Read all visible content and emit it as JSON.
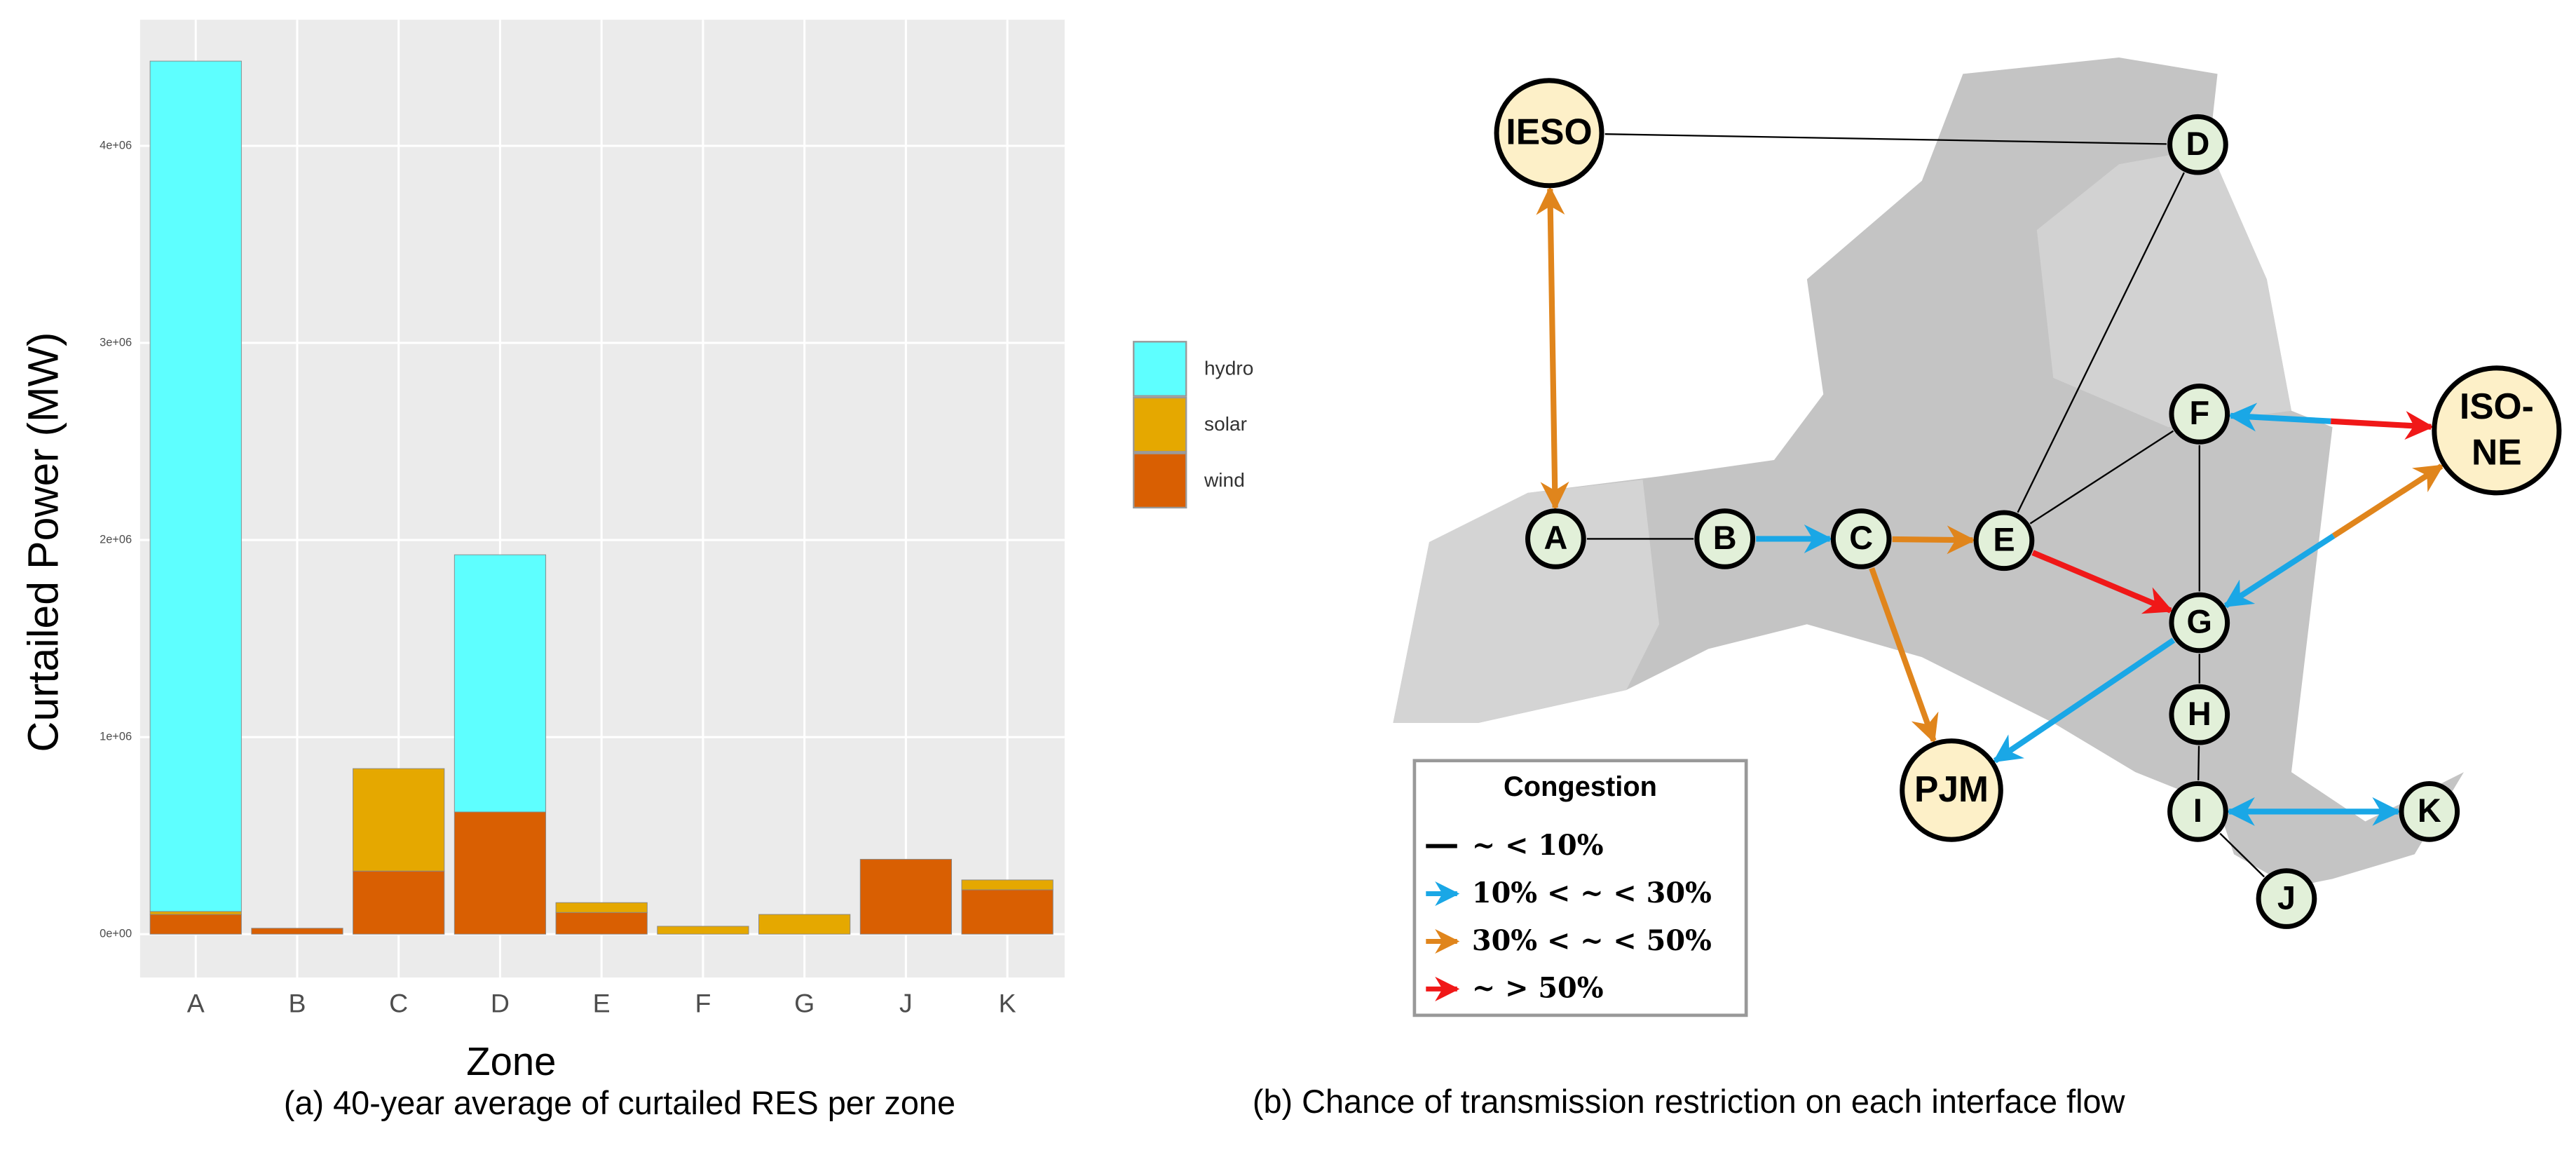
{
  "chart_data": {
    "type": "stacked-bar",
    "y_label": "Curtailed Power (MW)",
    "x_label": "Zone",
    "caption": "(a) 40-year average of curtailed RES per zone",
    "categories": [
      "A",
      "B",
      "C",
      "D",
      "E",
      "F",
      "G",
      "J",
      "K"
    ],
    "series": [
      {
        "name": "wind",
        "color": "#d95f02",
        "values": [
          100000,
          30000,
          320000,
          620000,
          110000,
          0,
          0,
          380000,
          225000
        ]
      },
      {
        "name": "solar",
        "color": "#e5a800",
        "values": [
          15000,
          0,
          520000,
          0,
          50000,
          40000,
          100000,
          0,
          50000
        ]
      },
      {
        "name": "hydro",
        "color": "#5effff",
        "values": [
          4315000,
          0,
          0,
          1305000,
          0,
          0,
          0,
          0,
          0
        ]
      }
    ],
    "legend_order": [
      "hydro",
      "solar",
      "wind"
    ],
    "ylim": [
      -220000,
      4640000
    ],
    "yticks": [
      {
        "value": 0,
        "label": "0e+00"
      },
      {
        "value": 1000000,
        "label": "1e+06"
      },
      {
        "value": 2000000,
        "label": "2e+06"
      },
      {
        "value": 3000000,
        "label": "3e+06"
      },
      {
        "value": 4000000,
        "label": "4e+06"
      }
    ],
    "grid": true
  },
  "diagram": {
    "caption": "(b) Chance of transmission restriction on each interface flow",
    "nodes": [
      {
        "label": "IESO"
      },
      {
        "label": "D"
      },
      {
        "label": "A"
      },
      {
        "label": "B"
      },
      {
        "label": "C"
      },
      {
        "label": "E"
      },
      {
        "label": "F"
      },
      {
        "label": "ISO-"
      },
      {
        "label": "G"
      },
      {
        "label": "H"
      },
      {
        "label": "PJM"
      },
      {
        "label": "I"
      },
      {
        "label": "K"
      },
      {
        "label": "J"
      }
    ],
    "iso_ne_second_line": "NE",
    "legend": {
      "title": "Congestion",
      "items": [
        "~ < 10%",
        "10% < ~ < 30%",
        "30% < ~ < 50%",
        "~ > 50%"
      ]
    }
  }
}
